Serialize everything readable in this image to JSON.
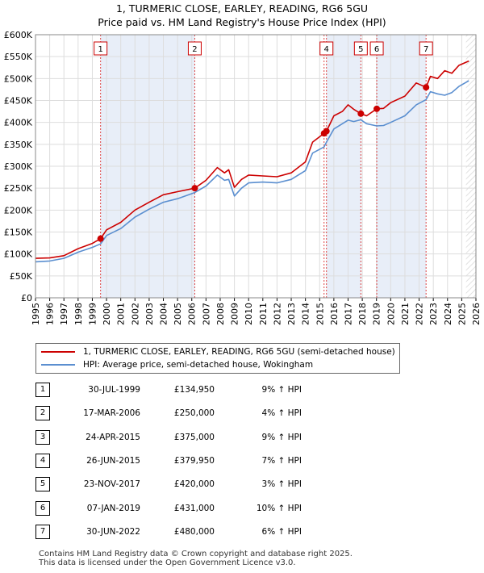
{
  "chart_data": {
    "type": "line",
    "title": "1, TURMERIC CLOSE, EARLEY, READING, RG6 5GU",
    "subtitle": "Price paid vs. HM Land Registry's House Price Index (HPI)",
    "ylim": [
      0,
      600000
    ],
    "xlim": [
      1995,
      2026
    ],
    "y_ticks": [
      {
        "value": 0,
        "label": "£0"
      },
      {
        "value": 50000,
        "label": "£50K"
      },
      {
        "value": 100000,
        "label": "£100K"
      },
      {
        "value": 150000,
        "label": "£150K"
      },
      {
        "value": 200000,
        "label": "£200K"
      },
      {
        "value": 250000,
        "label": "£250K"
      },
      {
        "value": 300000,
        "label": "£300K"
      },
      {
        "value": 350000,
        "label": "£350K"
      },
      {
        "value": 400000,
        "label": "£400K"
      },
      {
        "value": 450000,
        "label": "£450K"
      },
      {
        "value": 500000,
        "label": "£500K"
      },
      {
        "value": 550000,
        "label": "£550K"
      },
      {
        "value": 600000,
        "label": "£600K"
      }
    ],
    "x_ticks": [
      "1995",
      "1996",
      "1997",
      "1998",
      "1999",
      "2000",
      "2001",
      "2002",
      "2003",
      "2004",
      "2005",
      "2006",
      "2007",
      "2008",
      "2009",
      "2010",
      "2011",
      "2012",
      "2013",
      "2014",
      "2015",
      "2016",
      "2017",
      "2018",
      "2019",
      "2020",
      "2021",
      "2022",
      "2023",
      "2024",
      "2025",
      "2026"
    ],
    "series": [
      {
        "name": "1, TURMERIC CLOSE, EARLEY, READING, RG6 5GU (semi-detached house)",
        "color": "#cc0000",
        "points": [
          [
            1995.0,
            90000
          ],
          [
            1996.0,
            91000
          ],
          [
            1997.0,
            96000
          ],
          [
            1998.0,
            112000
          ],
          [
            1999.0,
            124000
          ],
          [
            1999.58,
            134950
          ],
          [
            2000.0,
            155000
          ],
          [
            2001.0,
            172000
          ],
          [
            2002.0,
            200000
          ],
          [
            2003.0,
            218000
          ],
          [
            2004.0,
            235000
          ],
          [
            2005.0,
            242000
          ],
          [
            2006.21,
            250000
          ],
          [
            2007.0,
            268000
          ],
          [
            2007.8,
            297000
          ],
          [
            2008.3,
            285000
          ],
          [
            2008.6,
            292000
          ],
          [
            2009.0,
            252000
          ],
          [
            2009.5,
            270000
          ],
          [
            2010.0,
            280000
          ],
          [
            2011.0,
            278000
          ],
          [
            2012.0,
            276000
          ],
          [
            2013.0,
            285000
          ],
          [
            2014.0,
            310000
          ],
          [
            2014.5,
            355000
          ],
          [
            2015.31,
            375000
          ],
          [
            2015.48,
            379950
          ],
          [
            2016.0,
            415000
          ],
          [
            2016.6,
            425000
          ],
          [
            2017.0,
            440000
          ],
          [
            2017.4,
            430000
          ],
          [
            2017.9,
            420000
          ],
          [
            2018.3,
            415000
          ],
          [
            2019.02,
            431000
          ],
          [
            2019.5,
            432000
          ],
          [
            2020.0,
            445000
          ],
          [
            2021.0,
            460000
          ],
          [
            2021.8,
            490000
          ],
          [
            2022.49,
            480000
          ],
          [
            2022.8,
            505000
          ],
          [
            2023.3,
            500000
          ],
          [
            2023.8,
            518000
          ],
          [
            2024.3,
            512000
          ],
          [
            2024.8,
            530000
          ],
          [
            2025.5,
            540000
          ]
        ]
      },
      {
        "name": "HPI: Average price, semi-detached house, Wokingham",
        "color": "#5b8fd0",
        "points": [
          [
            1995.0,
            82000
          ],
          [
            1996.0,
            84000
          ],
          [
            1997.0,
            90000
          ],
          [
            1998.0,
            104000
          ],
          [
            1999.0,
            115000
          ],
          [
            1999.58,
            123000
          ],
          [
            2000.0,
            142000
          ],
          [
            2001.0,
            158000
          ],
          [
            2002.0,
            184000
          ],
          [
            2003.0,
            202000
          ],
          [
            2004.0,
            218000
          ],
          [
            2005.0,
            226000
          ],
          [
            2006.21,
            240000
          ],
          [
            2007.0,
            255000
          ],
          [
            2007.8,
            280000
          ],
          [
            2008.3,
            268000
          ],
          [
            2008.6,
            270000
          ],
          [
            2009.0,
            232000
          ],
          [
            2009.5,
            250000
          ],
          [
            2010.0,
            262000
          ],
          [
            2011.0,
            264000
          ],
          [
            2012.0,
            262000
          ],
          [
            2013.0,
            270000
          ],
          [
            2014.0,
            290000
          ],
          [
            2014.5,
            330000
          ],
          [
            2015.31,
            344000
          ],
          [
            2015.48,
            355000
          ],
          [
            2016.0,
            385000
          ],
          [
            2016.6,
            397000
          ],
          [
            2017.0,
            405000
          ],
          [
            2017.4,
            402000
          ],
          [
            2017.9,
            406000
          ],
          [
            2018.3,
            397000
          ],
          [
            2019.02,
            392000
          ],
          [
            2019.5,
            393000
          ],
          [
            2020.0,
            400000
          ],
          [
            2021.0,
            415000
          ],
          [
            2021.8,
            440000
          ],
          [
            2022.49,
            452000
          ],
          [
            2022.8,
            470000
          ],
          [
            2023.3,
            465000
          ],
          [
            2023.8,
            462000
          ],
          [
            2024.3,
            468000
          ],
          [
            2024.8,
            482000
          ],
          [
            2025.5,
            495000
          ]
        ]
      }
    ],
    "sales": [
      {
        "id": "1",
        "date": "30-JUL-1999",
        "x": 1999.58,
        "price": "£134,950",
        "value": 134950,
        "hpi": "9% ↑ HPI"
      },
      {
        "id": "2",
        "date": "17-MAR-2006",
        "x": 2006.21,
        "price": "£250,000",
        "value": 250000,
        "hpi": "4% ↑ HPI"
      },
      {
        "id": "3",
        "date": "24-APR-2015",
        "x": 2015.31,
        "price": "£375,000",
        "value": 375000,
        "hpi": "9% ↑ HPI"
      },
      {
        "id": "4",
        "date": "26-JUN-2015",
        "x": 2015.48,
        "price": "£379,950",
        "value": 379950,
        "hpi": "7% ↑ HPI"
      },
      {
        "id": "5",
        "date": "23-NOV-2017",
        "x": 2017.9,
        "price": "£420,000",
        "value": 420000,
        "hpi": "3% ↑ HPI"
      },
      {
        "id": "6",
        "date": "07-JAN-2019",
        "x": 2019.02,
        "price": "£431,000",
        "value": 431000,
        "hpi": "10% ↑ HPI"
      },
      {
        "id": "7",
        "date": "30-JUN-2022",
        "x": 2022.49,
        "price": "£480,000",
        "value": 480000,
        "hpi": "6% ↑ HPI"
      }
    ],
    "marker_boxes_visible": [
      "1",
      "2",
      "4",
      "5",
      "6",
      "7"
    ],
    "shaded_spans": [
      [
        1999.58,
        2006.21
      ],
      [
        2015.48,
        2017.9
      ],
      [
        2019.02,
        2022.49
      ]
    ],
    "future_hatch_from": 2025.3
  },
  "legend": {
    "property_label": "1, TURMERIC CLOSE, EARLEY, READING, RG6 5GU (semi-detached house)",
    "hpi_label": "HPI: Average price, semi-detached house, Wokingham"
  },
  "footer": {
    "line1": "Contains HM Land Registry data © Crown copyright and database right 2025.",
    "line2": "This data is licensed under the Open Government Licence v3.0."
  }
}
